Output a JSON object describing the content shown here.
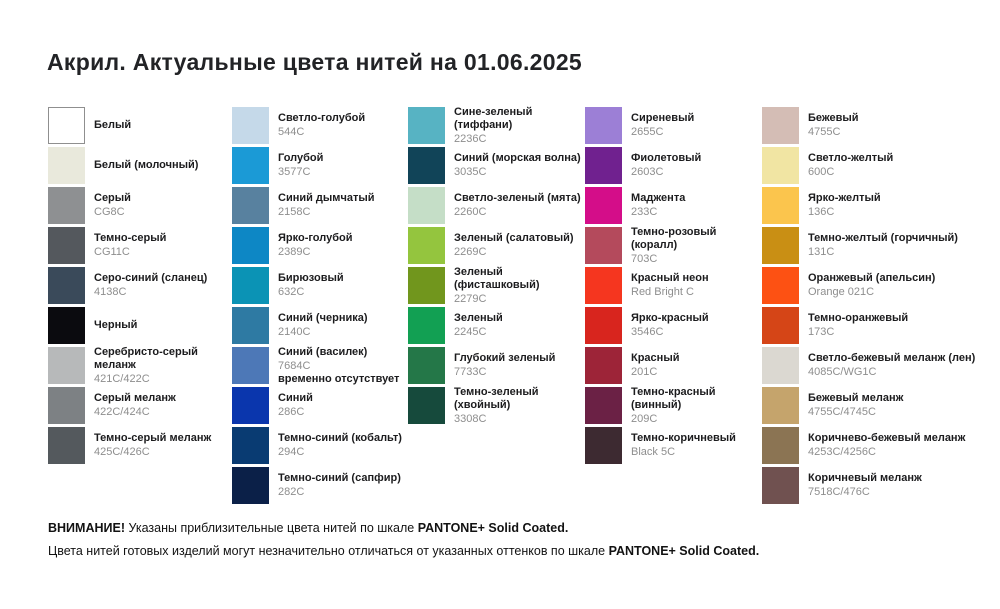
{
  "title": "Акрил. Актуальные цвета нитей на 01.06.2025",
  "columns": [
    {
      "items": [
        {
          "name": "Белый",
          "code": "",
          "color": "#ffffff",
          "border": true
        },
        {
          "name": "Белый (молочный)",
          "code": "",
          "color": "#e9e9dc"
        },
        {
          "name": "Серый",
          "code": "CG8C",
          "color": "#8e9092"
        },
        {
          "name": "Темно-серый",
          "code": "CG11C",
          "color": "#54585d"
        },
        {
          "name": "Серо-синий (сланец)",
          "code": "4138C",
          "color": "#3a4a5a"
        },
        {
          "name": "Черный",
          "code": "",
          "color": "#0b0b0f"
        },
        {
          "name": "Серебристо-серый меланж",
          "code": "421C/422C",
          "color": "#b7b9ba"
        },
        {
          "name": "Серый меланж",
          "code": "422C/424C",
          "color": "#7d8184"
        },
        {
          "name": "Темно-серый меланж",
          "code": "425C/426C",
          "color": "#54595d"
        }
      ]
    },
    {
      "items": [
        {
          "name": "Светло-голубой",
          "code": "544C",
          "color": "#c5d9e9"
        },
        {
          "name": "Голубой",
          "code": "3577C",
          "color": "#1b9ad6"
        },
        {
          "name": "Синий дымчатый",
          "code": "2158C",
          "color": "#58819f"
        },
        {
          "name": "Ярко-голубой",
          "code": "2389C",
          "color": "#0d87c5"
        },
        {
          "name": "Бирюзовый",
          "code": "632C",
          "color": "#0b93b5"
        },
        {
          "name": "Синий (черника)",
          "code": "2140C",
          "color": "#2e7aa3"
        },
        {
          "name": "Синий (василек)",
          "code": "7684C",
          "note": "временно отсутствует",
          "color": "#4d78b7"
        },
        {
          "name": "Синий",
          "code": "286C",
          "color": "#0a36ad"
        },
        {
          "name": "Темно-синий (кобальт)",
          "code": "294C",
          "color": "#093b72"
        },
        {
          "name": "Темно-синий (сапфир)",
          "code": "282C",
          "color": "#0b2048"
        }
      ]
    },
    {
      "items": [
        {
          "name": "Сине-зеленый (тиффани)",
          "code": "2236C",
          "color": "#57b3c3"
        },
        {
          "name": "Синий (морская волна)",
          "code": "3035C",
          "color": "#114458"
        },
        {
          "name": "Светло-зеленый (мята)",
          "code": "2260C",
          "color": "#c5dec7"
        },
        {
          "name": "Зеленый (салатовый)",
          "code": "2269C",
          "color": "#94c53e"
        },
        {
          "name": "Зеленый (фисташковый)",
          "code": "2279C",
          "color": "#71961d"
        },
        {
          "name": "Зеленый",
          "code": "2245C",
          "color": "#12a053"
        },
        {
          "name": "Глубокий зеленый",
          "code": "7733C",
          "color": "#247748"
        },
        {
          "name": "Темно-зеленый (хвойный)",
          "code": "3308C",
          "color": "#164a3c"
        }
      ]
    },
    {
      "items": [
        {
          "name": "Сиреневый",
          "code": "2655C",
          "color": "#9c7fd6"
        },
        {
          "name": "Фиолетовый",
          "code": "2603C",
          "color": "#70218f"
        },
        {
          "name": "Маджента",
          "code": "233C",
          "color": "#d40d89"
        },
        {
          "name": "Темно-розовый (коралл)",
          "code": "703C",
          "color": "#b44a5c"
        },
        {
          "name": "Красный неон",
          "code": "Red Bright C",
          "color": "#f5361f"
        },
        {
          "name": "Ярко-красный",
          "code": "3546C",
          "color": "#d8251e"
        },
        {
          "name": "Красный",
          "code": "201C",
          "color": "#9d2438"
        },
        {
          "name": "Темно-красный (винный)",
          "code": "209C",
          "color": "#6b2145"
        },
        {
          "name": "Темно-коричневый",
          "code": "Black 5C",
          "color": "#3d2a31"
        }
      ]
    },
    {
      "items": [
        {
          "name": "Бежевый",
          "code": "4755C",
          "color": "#d4bdb5"
        },
        {
          "name": "Светло-желтый",
          "code": "600C",
          "color": "#f1e5a3"
        },
        {
          "name": "Ярко-желтый",
          "code": "136C",
          "color": "#fbc54d"
        },
        {
          "name": "Темно-желтый (горчичный)",
          "code": "131C",
          "color": "#c98f14"
        },
        {
          "name": "Оранжевый (апельсин)",
          "code": "Orange 021C",
          "color": "#fd5113"
        },
        {
          "name": "Темно-оранжевый",
          "code": "173C",
          "color": "#d54517"
        },
        {
          "name": "Светло-бежевый меланж (лен)",
          "code": "4085C/WG1C",
          "color": "#dbd8d1"
        },
        {
          "name": "Бежевый меланж",
          "code": "4755C/4745C",
          "color": "#c5a46c"
        },
        {
          "name": "Коричнево-бежевый меланж",
          "code": "4253C/4256C",
          "color": "#8b7453"
        },
        {
          "name": "Коричневый меланж",
          "code": "7518C/476C",
          "color": "#705150"
        }
      ]
    }
  ],
  "footer": {
    "attention": "ВНИМАНИЕ!",
    "line1": " Указаны приблизительные цвета нитей по шкале ",
    "pantone1": "PANTONE+ Solid Coated.",
    "line2": "Цвета нитей готовых изделий могут незначительно отличаться от указанных оттенков по шкале ",
    "pantone2": "PANTONE+ Solid Coated."
  }
}
